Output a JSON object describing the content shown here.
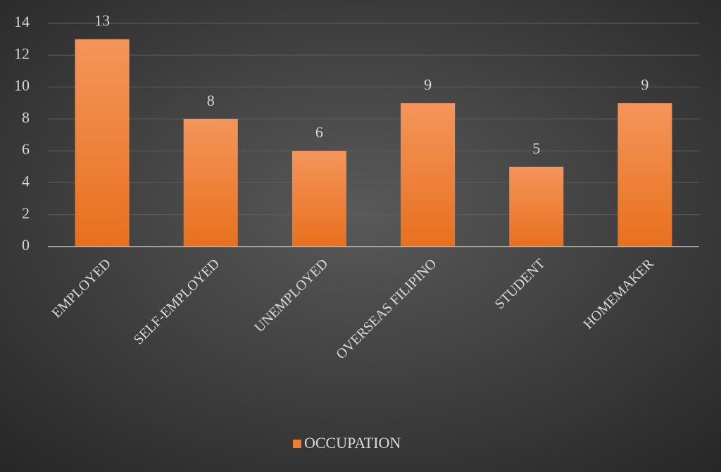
{
  "chart_data": {
    "type": "bar",
    "categories": [
      "EMPLOYED",
      "SELF-EMPLOYED",
      "UNEMPLOYED",
      "OVERSEAS FILIPINO",
      "STUDENT",
      "HOMEMAKER"
    ],
    "series": [
      {
        "name": "OCCUPATION",
        "color": "#ed7d31",
        "values": [
          13,
          8,
          6,
          9,
          5,
          9
        ]
      }
    ],
    "ylim": [
      0,
      14
    ],
    "yticks": [
      0,
      2,
      4,
      6,
      8,
      10,
      12,
      14
    ],
    "grid": true,
    "legend": "bottom"
  }
}
